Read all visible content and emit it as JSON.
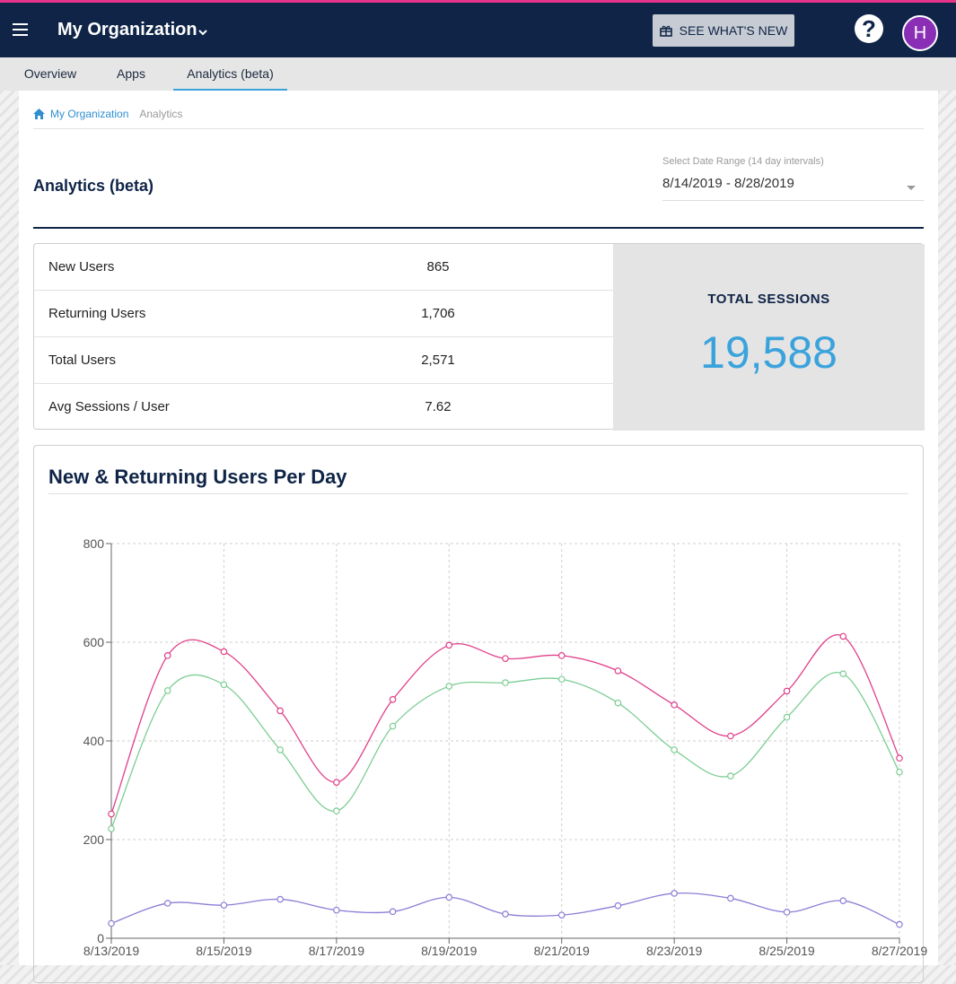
{
  "header": {
    "org_name": "My Organization",
    "whats_new_label": "SEE WHAT'S NEW",
    "help_symbol": "?",
    "avatar_initial": "H"
  },
  "tabs": [
    {
      "label": "Overview",
      "active": false
    },
    {
      "label": "Apps",
      "active": false
    },
    {
      "label": "Analytics (beta)",
      "active": true
    }
  ],
  "breadcrumb": {
    "home": "My Organization",
    "current": "Analytics"
  },
  "page": {
    "title": "Analytics (beta)",
    "date_range_label": "Select Date Range (14 day intervals)",
    "date_range_value": "8/14/2019 - 8/28/2019"
  },
  "stats": [
    {
      "label": "New Users",
      "value": "865"
    },
    {
      "label": "Returning Users",
      "value": "1,706"
    },
    {
      "label": "Total Users",
      "value": "2,571"
    },
    {
      "label": "Avg Sessions / User",
      "value": "7.62"
    }
  ],
  "sessions": {
    "label": "TOTAL SESSIONS",
    "value": "19,588"
  },
  "colors": {
    "navy": "#0f2447",
    "accent_pink": "#e6338a",
    "accent_blue": "#3ba3dc"
  },
  "chart_data": {
    "type": "line",
    "title": "New & Returning Users Per Day",
    "x": [
      "8/13/2019",
      "8/14/2019",
      "8/15/2019",
      "8/16/2019",
      "8/17/2019",
      "8/18/2019",
      "8/19/2019",
      "8/20/2019",
      "8/21/2019",
      "8/22/2019",
      "8/23/2019",
      "8/24/2019",
      "8/25/2019",
      "8/26/2019",
      "8/27/2019"
    ],
    "x_tick_labels": [
      "8/13/2019",
      "8/15/2019",
      "8/17/2019",
      "8/19/2019",
      "8/21/2019",
      "8/23/2019",
      "8/25/2019",
      "8/27/2019"
    ],
    "y_ticks": [
      0,
      200,
      400,
      600,
      800
    ],
    "ylim": [
      0,
      800
    ],
    "grid": true,
    "series": [
      {
        "color": "#e0408a",
        "values": [
          252,
          573,
          581,
          461,
          316,
          484,
          594,
          567,
          573,
          542,
          473,
          410,
          501,
          612,
          365
        ]
      },
      {
        "color": "#7ccd93",
        "values": [
          222,
          502,
          514,
          382,
          258,
          430,
          511,
          518,
          525,
          477,
          382,
          329,
          448,
          536,
          337
        ]
      },
      {
        "color": "#8a7fd6",
        "values": [
          30,
          71,
          67,
          79,
          57,
          54,
          83,
          49,
          47,
          66,
          91,
          81,
          53,
          76,
          28
        ]
      }
    ]
  }
}
